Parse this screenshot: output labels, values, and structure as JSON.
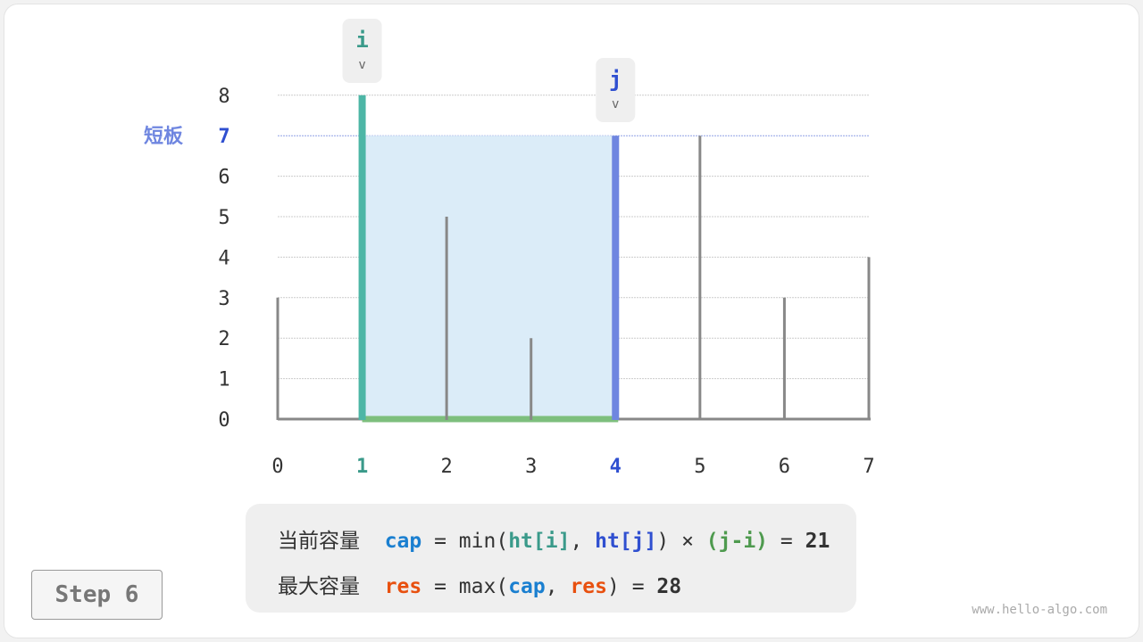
{
  "diagram": {
    "heights": [
      3,
      8,
      5,
      2,
      7,
      7,
      3,
      4
    ],
    "x_ticks": [
      "0",
      "1",
      "2",
      "3",
      "4",
      "5",
      "6",
      "7"
    ],
    "y_ticks": [
      "0",
      "1",
      "2",
      "3",
      "4",
      "5",
      "6",
      "7",
      "8"
    ],
    "pointer_i": {
      "label": "i",
      "index": 1,
      "color": "#3a9a8a"
    },
    "pointer_j": {
      "label": "j",
      "index": 4,
      "color": "#2f4fd0"
    },
    "short_board_label": "短板",
    "short_board_value": 7,
    "colors": {
      "bar": "#888888",
      "i_bar": "#4db6a6",
      "j_bar": "#6f86e0",
      "area": "#dbecf8",
      "base": "#7dbf7d",
      "short": "#6f86e0"
    }
  },
  "formula": {
    "line1": {
      "label": "当前容量",
      "cap": "cap",
      "eq1": " = min(",
      "hti": "ht[i]",
      "comma": ", ",
      "htj": "ht[j]",
      "close": ")",
      "times": " × ",
      "ji": "(j-i)",
      "eq2": " = ",
      "value": "21"
    },
    "line2": {
      "label": "最大容量",
      "res": "res",
      "eq1": " = max(",
      "cap": "cap",
      "comma": ", ",
      "res2": "res",
      "close": ")",
      "eq2": " = ",
      "value": "28"
    }
  },
  "step_label": "Step 6",
  "watermark": "www.hello-algo.com"
}
